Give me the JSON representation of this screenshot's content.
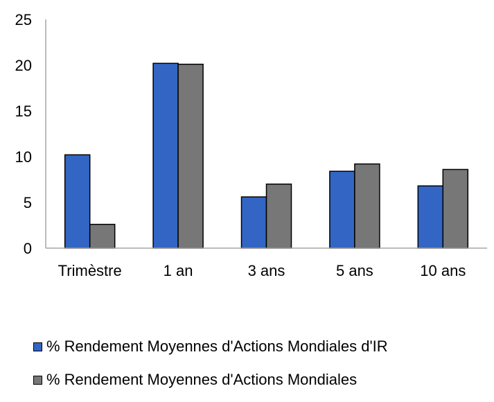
{
  "chart_data": {
    "type": "bar",
    "categories": [
      "Trimèstre",
      "1 an",
      "3 ans",
      "5 ans",
      "10 ans"
    ],
    "series": [
      {
        "name": "% Rendement Moyennes d'Actions Mondiales d'IR",
        "values": [
          10.2,
          20.2,
          5.6,
          8.4,
          6.8
        ],
        "color": "#3366c4"
      },
      {
        "name": "% Rendement Moyennes d'Actions Mondiales",
        "values": [
          2.6,
          20.1,
          7.0,
          9.2,
          8.6
        ],
        "color": "#777777"
      }
    ],
    "ylim": [
      0,
      25
    ],
    "yticks": [
      0,
      5,
      10,
      15,
      20,
      25
    ],
    "grid": false,
    "legend_position": "bottom-left",
    "title": "",
    "xlabel": "",
    "ylabel": ""
  }
}
